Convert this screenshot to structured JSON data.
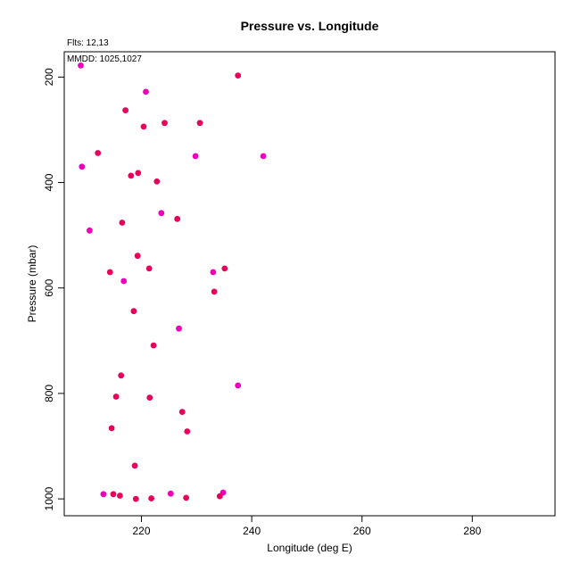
{
  "chart_data": {
    "type": "scatter",
    "title": "Pressure vs. Longitude",
    "xlabel": "Longitude (deg E)",
    "ylabel": "Pressure (mbar)",
    "xlim": [
      206,
      295
    ],
    "ylim": [
      1032,
      152
    ],
    "y_reversed": true,
    "grid": false,
    "legend": "none",
    "xticks": [
      220,
      240,
      260,
      280
    ],
    "yticks": [
      200,
      400,
      600,
      800,
      1000
    ],
    "annotations": [
      "Flts: 12,13",
      "MMDD: 1025,1027"
    ],
    "colors": {
      "red": "#e8005a",
      "magenta": "#ee00bb"
    },
    "points": [
      {
        "x": 209.0,
        "y": 178,
        "c": "magenta"
      },
      {
        "x": 237.5,
        "y": 197,
        "c": "red"
      },
      {
        "x": 220.8,
        "y": 228,
        "c": "magenta"
      },
      {
        "x": 217.1,
        "y": 263,
        "c": "red"
      },
      {
        "x": 224.2,
        "y": 287,
        "c": "red"
      },
      {
        "x": 230.6,
        "y": 287,
        "c": "red"
      },
      {
        "x": 220.4,
        "y": 294,
        "c": "red"
      },
      {
        "x": 212.1,
        "y": 344,
        "c": "red"
      },
      {
        "x": 229.8,
        "y": 350,
        "c": "magenta"
      },
      {
        "x": 242.1,
        "y": 350,
        "c": "magenta"
      },
      {
        "x": 209.2,
        "y": 370,
        "c": "magenta"
      },
      {
        "x": 219.4,
        "y": 382,
        "c": "red"
      },
      {
        "x": 218.1,
        "y": 387,
        "c": "red"
      },
      {
        "x": 222.8,
        "y": 398,
        "c": "red"
      },
      {
        "x": 223.6,
        "y": 458,
        "c": "magenta"
      },
      {
        "x": 226.5,
        "y": 469,
        "c": "red"
      },
      {
        "x": 216.5,
        "y": 476,
        "c": "red"
      },
      {
        "x": 210.6,
        "y": 491,
        "c": "magenta"
      },
      {
        "x": 219.3,
        "y": 539,
        "c": "red"
      },
      {
        "x": 221.4,
        "y": 563,
        "c": "red"
      },
      {
        "x": 235.1,
        "y": 563,
        "c": "red"
      },
      {
        "x": 233.0,
        "y": 570,
        "c": "magenta"
      },
      {
        "x": 214.3,
        "y": 570,
        "c": "red"
      },
      {
        "x": 216.8,
        "y": 587,
        "c": "magenta"
      },
      {
        "x": 233.2,
        "y": 607,
        "c": "red"
      },
      {
        "x": 218.6,
        "y": 644,
        "c": "red"
      },
      {
        "x": 226.8,
        "y": 677,
        "c": "magenta"
      },
      {
        "x": 222.2,
        "y": 709,
        "c": "red"
      },
      {
        "x": 237.5,
        "y": 785,
        "c": "magenta"
      },
      {
        "x": 216.3,
        "y": 766,
        "c": "red"
      },
      {
        "x": 215.4,
        "y": 806,
        "c": "red"
      },
      {
        "x": 221.5,
        "y": 808,
        "c": "red"
      },
      {
        "x": 227.4,
        "y": 835,
        "c": "red"
      },
      {
        "x": 214.6,
        "y": 866,
        "c": "red"
      },
      {
        "x": 228.3,
        "y": 872,
        "c": "red"
      },
      {
        "x": 218.8,
        "y": 937,
        "c": "red"
      },
      {
        "x": 213.1,
        "y": 991,
        "c": "magenta"
      },
      {
        "x": 214.9,
        "y": 991,
        "c": "red"
      },
      {
        "x": 216.1,
        "y": 994,
        "c": "red"
      },
      {
        "x": 225.3,
        "y": 990,
        "c": "magenta"
      },
      {
        "x": 234.8,
        "y": 988,
        "c": "magenta"
      },
      {
        "x": 234.2,
        "y": 995,
        "c": "red"
      },
      {
        "x": 219.0,
        "y": 1000,
        "c": "red"
      },
      {
        "x": 221.8,
        "y": 999,
        "c": "red"
      },
      {
        "x": 228.1,
        "y": 998,
        "c": "red"
      }
    ]
  }
}
